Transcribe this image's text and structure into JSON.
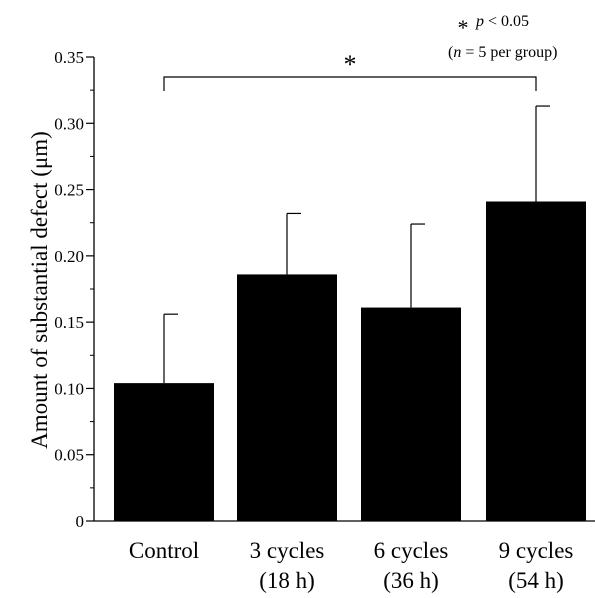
{
  "chart_data": {
    "type": "bar",
    "ylabel": "Amount of substantial defect (μm)",
    "ylim": [
      0,
      0.35
    ],
    "yticks": [
      "0",
      "0.05",
      "0.10",
      "0.15",
      "0.20",
      "0.25",
      "0.30",
      "0.35"
    ],
    "yticks_values": [
      0,
      0.05,
      0.1,
      0.15,
      0.2,
      0.25,
      0.3,
      0.35
    ],
    "categories": [
      {
        "line1": "Control",
        "line2": ""
      },
      {
        "line1": "3 cycles",
        "line2": "(18 h)"
      },
      {
        "line1": "6 cycles",
        "line2": "(36 h)"
      },
      {
        "line1": "9 cycles",
        "line2": "(54 h)"
      }
    ],
    "values": [
      0.104,
      0.186,
      0.161,
      0.241
    ],
    "error_upper": [
      0.156,
      0.232,
      0.224,
      0.313
    ],
    "bar_color": "#000000",
    "significance": {
      "from": 0,
      "to": 3,
      "marker": "*"
    },
    "legend_note": {
      "star": "*",
      "p_symbol": "p",
      "p_text": " < 0.05",
      "n_open": "(",
      "n_symbol": "n",
      "n_text": " = 5 per group)"
    }
  }
}
